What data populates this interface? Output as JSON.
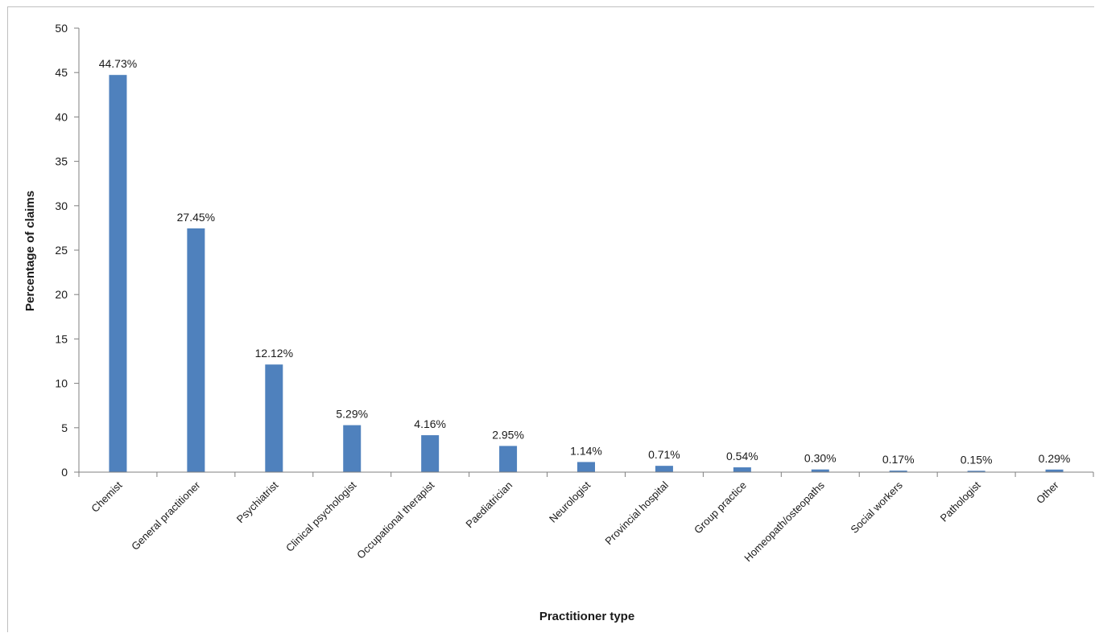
{
  "chart_data": {
    "type": "bar",
    "xlabel": "Practitioner type",
    "ylabel": "Percentage of claims",
    "ylim": [
      0,
      50
    ],
    "yticks": [
      0,
      5,
      10,
      15,
      20,
      25,
      30,
      35,
      40,
      45,
      50
    ],
    "grid": false,
    "bar_color": "#4f81bd",
    "categories": [
      "Chemist",
      "General practitioner",
      "Psychiatrist",
      "Clinical psychologist",
      "Occupational therapist",
      "Paediatrician",
      "Neurologist",
      "Provincial hospital",
      "Group practice",
      "Homeopath/osteopaths",
      "Social workers",
      "Pathologist",
      "Other"
    ],
    "values": [
      44.73,
      27.45,
      12.12,
      5.29,
      4.16,
      2.95,
      1.14,
      0.71,
      0.54,
      0.3,
      0.17,
      0.15,
      0.29
    ],
    "data_labels": [
      "44.73%",
      "27.45%",
      "12.12%",
      "5.29%",
      "4.16%",
      "2.95%",
      "1.14%",
      "0.71%",
      "0.54%",
      "0.30%",
      "0.17%",
      "0.15%",
      "0.29%"
    ]
  }
}
